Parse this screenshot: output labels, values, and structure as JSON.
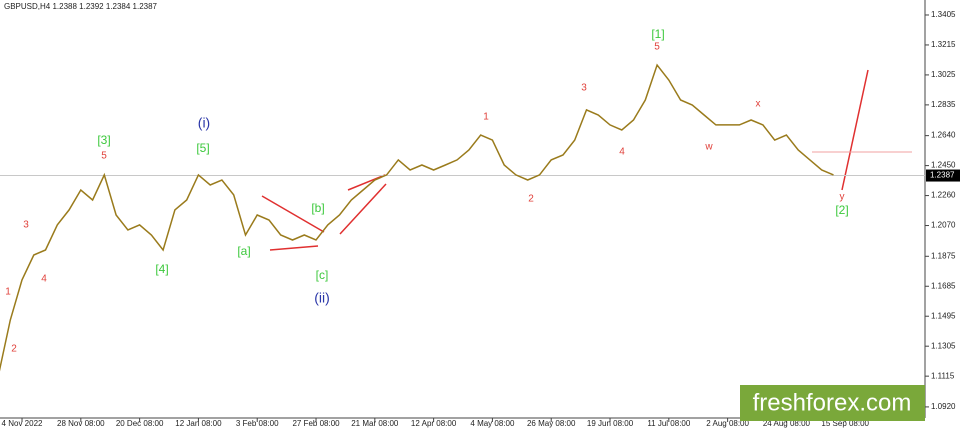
{
  "chart_data": {
    "type": "line",
    "symbol_info": "GBPUSD,H4  1.2388 1.2392 1.2384 1.2387",
    "categories": [
      null,
      null,
      "4 Nov 2022",
      null,
      null,
      null,
      null,
      "28 Nov 08:00",
      null,
      null,
      null,
      null,
      "20 Dec 08:00",
      null,
      null,
      null,
      null,
      "12 Jan 08:00",
      null,
      null,
      null,
      null,
      "3 Feb 08:00",
      null,
      null,
      null,
      null,
      "27 Feb 08:00",
      null,
      null,
      null,
      null,
      "21 Mar 08:00",
      null,
      null,
      null,
      null,
      "12 Apr 08:00",
      null,
      null,
      null,
      null,
      "4 May 08:00",
      null,
      null,
      null,
      null,
      "26 May 08:00",
      null,
      null,
      null,
      null,
      "19 Jun 08:00",
      null,
      null,
      null,
      null,
      "11 Jul 08:00",
      null,
      null,
      null,
      null,
      "2 Aug 08:00",
      null,
      null,
      null,
      null,
      "24 Aug 08:00",
      null,
      null,
      null,
      null,
      "15 Sep 08:00"
    ],
    "values": [
      1.1123,
      1.1471,
      1.1725,
      1.1883,
      1.1915,
      1.2074,
      1.2169,
      1.2295,
      1.2232,
      1.2391,
      1.2137,
      1.2042,
      1.2074,
      1.201,
      1.1915,
      1.2169,
      1.2232,
      1.2391,
      1.2327,
      1.2359,
      1.2264,
      1.201,
      1.2137,
      1.2105,
      1.201,
      1.1978,
      1.201,
      1.1978,
      1.2074,
      1.2137,
      1.2232,
      1.2295,
      1.2359,
      1.2391,
      1.2486,
      1.2422,
      1.2454,
      1.2422,
      1.2454,
      1.2486,
      1.2549,
      1.2644,
      1.2612,
      1.2454,
      1.2391,
      1.2359,
      1.2391,
      1.2486,
      1.2517,
      1.2612,
      1.2803,
      1.2771,
      1.2708,
      1.2676,
      1.2739,
      1.2866,
      1.3088,
      1.2993,
      1.2866,
      1.2834,
      1.2771,
      1.2708,
      1.2708,
      1.2708,
      1.2739,
      1.2708,
      1.2612,
      1.2644,
      1.2549,
      1.2486,
      1.2422,
      1.2391,
      null
    ],
    "color": "#9a7b1c",
    "ylim": [
      1.0837,
      1.35
    ],
    "yticks": [
      1.3405,
      1.3215,
      1.3025,
      1.2835,
      {
        "value": 1.264,
        "label": "1.2640"
      },
      {
        "value": 1.245,
        "label": "1.2450"
      },
      {
        "value": 1.226,
        "label": "1.2260"
      },
      {
        "value": 1.207,
        "label": "1.2070"
      },
      1.1875,
      1.1685,
      1.1495,
      1.1305,
      1.1115,
      {
        "value": 1.092,
        "label": "1.0920"
      }
    ],
    "current_price": 1.2387,
    "annotations": [
      {
        "text": "1",
        "color": "#e0403a"
      },
      {
        "text": "2",
        "color": "#e0403a"
      },
      {
        "text": "3",
        "color": "#e0403a"
      },
      {
        "text": "4",
        "color": "#e0403a"
      },
      {
        "text": "[3]",
        "color": "#3cc83c"
      },
      {
        "text": "5",
        "color": "#e0403a"
      },
      {
        "text": "[4]",
        "color": "#3cc83c"
      },
      {
        "text": "(i)",
        "color": "#2a36a8"
      },
      {
        "text": "[5]",
        "color": "#3cc83c"
      },
      {
        "text": "[a]",
        "color": "#3cc83c"
      },
      {
        "text": "[b]",
        "color": "#3cc83c"
      },
      {
        "text": "[c]",
        "color": "#3cc83c"
      },
      {
        "text": "(ii)",
        "color": "#2a36a8"
      },
      {
        "text": "1",
        "color": "#e0403a"
      },
      {
        "text": "2",
        "color": "#e0403a"
      },
      {
        "text": "3",
        "color": "#e0403a"
      },
      {
        "text": "4",
        "color": "#e0403a"
      },
      {
        "text": "[1]",
        "color": "#3cc83c"
      },
      {
        "text": "5",
        "color": "#e0403a"
      },
      {
        "text": "w",
        "color": "#e0403a"
      },
      {
        "text": "x",
        "color": "#e0403a"
      },
      {
        "text": "y",
        "color": "#e0403a"
      },
      {
        "text": "[2]",
        "color": "#3cc83c"
      }
    ],
    "watermark": "freshforex.com"
  }
}
